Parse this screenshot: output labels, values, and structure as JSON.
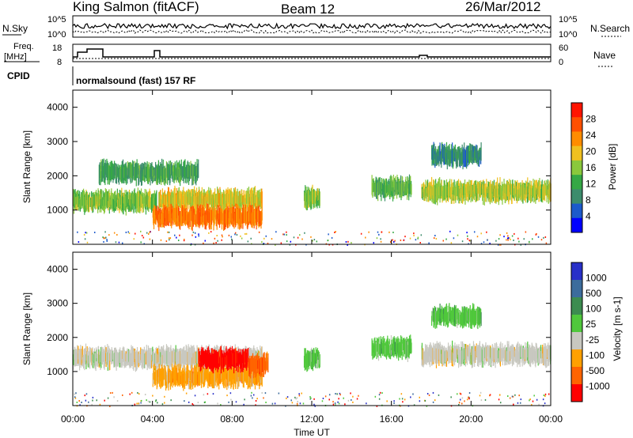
{
  "header": {
    "station": "King Salmon (fitACF)",
    "beam": "Beam 12",
    "date": "26/Mar/2012"
  },
  "top_panels": {
    "nsky_label": "N.Sky",
    "nsearch_label": "N.Search",
    "nsky_ticks": [
      "10^5",
      "10^0"
    ],
    "nsearch_ticks": [
      "10^5",
      "10^0"
    ],
    "freq_label": "Freq.",
    "freq_unit": "[MHz]",
    "freq_ticks": [
      "18",
      "8"
    ],
    "nave_label": "Nave",
    "nave_ticks": [
      "60",
      "0"
    ],
    "cpid_label": "CPID",
    "cpid_text": "normalsound (fast) 157 RF"
  },
  "chart_data": [
    {
      "type": "heatmap",
      "title": "",
      "xlabel": "Time UT",
      "ylabel": "Slant Range [km]",
      "xticks": [
        "00:00",
        "04:00",
        "08:00",
        "12:00",
        "16:00",
        "20:00",
        "00:00"
      ],
      "yticks": [
        "1000",
        "2000",
        "3000",
        "4000"
      ],
      "xlim": [
        0,
        24
      ],
      "ylim": [
        0,
        4500
      ],
      "colorbar": {
        "label": "Power [dB]",
        "ticks": [
          "28",
          "24",
          "20",
          "16",
          "12",
          "8",
          "4"
        ],
        "range": [
          0,
          30
        ],
        "colors": [
          "#0000ff",
          "#1c5acb",
          "#3c8c6c",
          "#35a845",
          "#8ac83c",
          "#f0c020",
          "#ff8c00",
          "#ff5000",
          "#ff1400"
        ]
      },
      "features": [
        {
          "t_start": 0.0,
          "t_end": 4.2,
          "range_center": 1250,
          "power": 14
        },
        {
          "t_start": 4.3,
          "t_end": 9.5,
          "range_center": 1300,
          "power": 18
        },
        {
          "t_start": 4.0,
          "t_end": 9.5,
          "range_center": 800,
          "power": 24
        },
        {
          "t_start": 1.3,
          "t_end": 6.3,
          "range_center": 2100,
          "power": 10
        },
        {
          "t_start": 11.6,
          "t_end": 12.4,
          "range_center": 1350,
          "power": 14
        },
        {
          "t_start": 15.0,
          "t_end": 17.0,
          "range_center": 1650,
          "power": 12
        },
        {
          "t_start": 17.5,
          "t_end": 24.0,
          "range_center": 1550,
          "power": 16
        },
        {
          "t_start": 18.0,
          "t_end": 20.5,
          "range_center": 2600,
          "power": 8
        }
      ]
    },
    {
      "type": "heatmap",
      "title": "",
      "xlabel": "Time UT",
      "ylabel": "Slant Range [km]",
      "xticks": [
        "00:00",
        "04:00",
        "08:00",
        "12:00",
        "16:00",
        "20:00",
        "00:00"
      ],
      "yticks": [
        "1000",
        "2000",
        "3000",
        "4000"
      ],
      "xlim": [
        0,
        24
      ],
      "ylim": [
        0,
        4500
      ],
      "colorbar": {
        "label": "Velocity [m s-1]",
        "ticks": [
          "1000",
          "500",
          "100",
          "25",
          "-25",
          "-100",
          "-500",
          "-1000"
        ],
        "colors": [
          "#2830c8",
          "#3c6c9c",
          "#3c8c50",
          "#50c83c",
          "#c8c8c0",
          "#ffa000",
          "#ff6400",
          "#ff0000"
        ]
      },
      "features": [
        {
          "t_start": 0.0,
          "t_end": 9.5,
          "range_center": 1400,
          "velocity": 0
        },
        {
          "t_start": 4.0,
          "t_end": 9.5,
          "range_center": 850,
          "velocity": -100
        },
        {
          "t_start": 6.3,
          "t_end": 8.8,
          "range_center": 1350,
          "velocity": -1000
        },
        {
          "t_start": 8.8,
          "t_end": 9.8,
          "range_center": 1200,
          "velocity": -500
        },
        {
          "t_start": 11.6,
          "t_end": 12.4,
          "range_center": 1400,
          "velocity": 100
        },
        {
          "t_start": 15.0,
          "t_end": 17.0,
          "range_center": 1700,
          "velocity": 100
        },
        {
          "t_start": 17.5,
          "t_end": 24.0,
          "range_center": 1500,
          "velocity": 0
        },
        {
          "t_start": 18.0,
          "t_end": 20.5,
          "range_center": 2600,
          "velocity": 100
        }
      ]
    }
  ]
}
